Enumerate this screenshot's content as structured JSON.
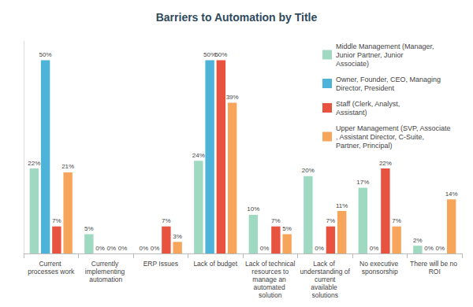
{
  "chart_data": {
    "type": "bar",
    "title": "Barriers to Automation by Title",
    "categories": [
      "Current processes work",
      "Currently implementing automation",
      "ERP Issues",
      "Lack of budget",
      "Lack of technical resources to manage an automated solution",
      "Lack of understanding of current available solutions",
      "No executive sponsorship",
      "There will be no ROI"
    ],
    "series": [
      {
        "name": "Middle Management (Manager, Junior Partner, Junior Associate)",
        "color": "#9fd9c1",
        "values": [
          22,
          5,
          0,
          24,
          10,
          20,
          17,
          2
        ],
        "value_labels": [
          "22%",
          "5%",
          "0%",
          "24%",
          "10%",
          "20%",
          "17%",
          "2%"
        ]
      },
      {
        "name": "Owner, Founder, CEO, Managing Director, President",
        "color": "#4db3d8",
        "values": [
          50,
          0,
          0,
          50,
          0,
          0,
          0,
          0
        ],
        "value_labels": [
          "50%",
          "0%",
          "0%",
          "50%",
          "0%",
          "0%",
          "0%",
          "0%"
        ]
      },
      {
        "name": "Staff (Clerk, Analyst, Assistant)",
        "color": "#e8533f",
        "values": [
          7,
          0,
          7,
          50,
          7,
          7,
          22,
          0
        ],
        "value_labels": [
          "7%",
          "0%",
          "7%",
          "50%",
          "7%",
          "7%",
          "22%",
          "0%"
        ]
      },
      {
        "name": "Upper Management (SVP, Associate, Assistant Director, C-Suite, Partner, Principal)",
        "color": "#f8a55c",
        "values": [
          21,
          0,
          3,
          39,
          5,
          11,
          7,
          14
        ],
        "value_labels": [
          "21%",
          "0%",
          "3%",
          "39%",
          "5%",
          "11%",
          "7%",
          "14%"
        ]
      }
    ],
    "ylim": [
      0,
      55
    ],
    "grid": false,
    "legend": "right",
    "data_labels": true,
    "tick_labels": "x"
  }
}
